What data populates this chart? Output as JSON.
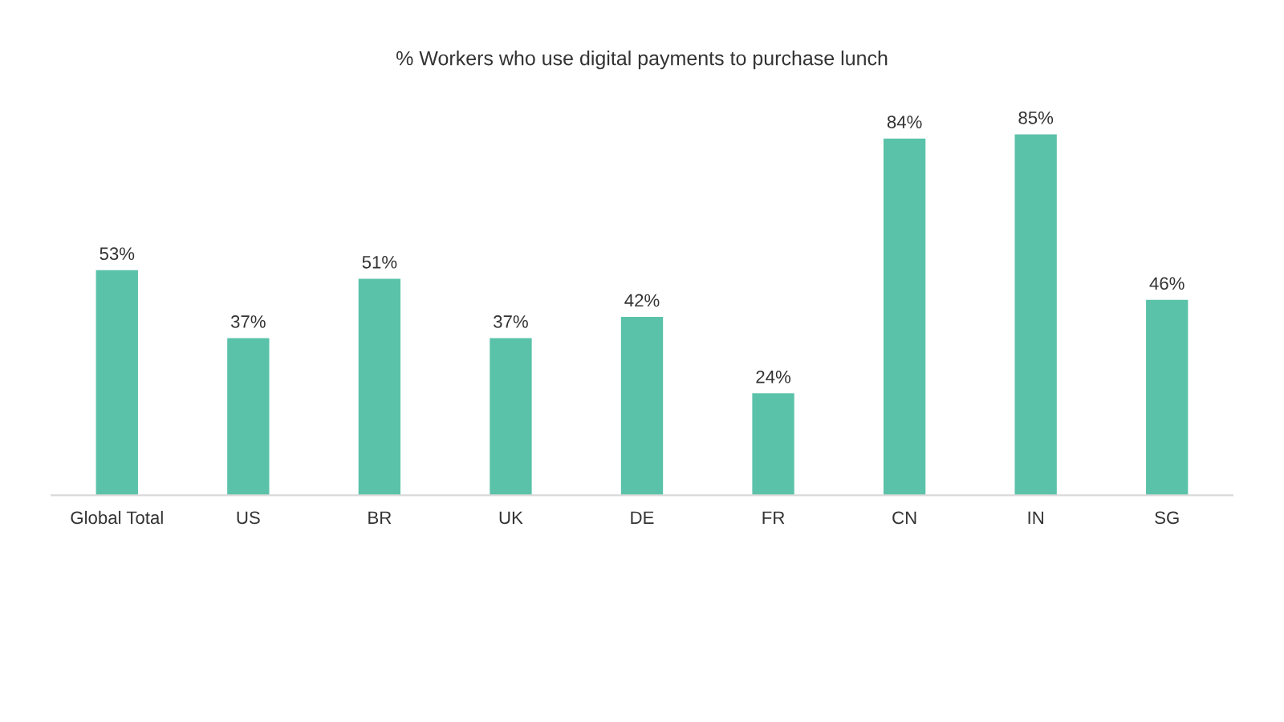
{
  "chart_data": {
    "type": "bar",
    "title": "% Workers who use digital payments to purchase lunch",
    "categories": [
      "Global Total",
      "US",
      "BR",
      "UK",
      "DE",
      "FR",
      "CN",
      "IN",
      "SG"
    ],
    "values": [
      53,
      37,
      51,
      37,
      42,
      24,
      84,
      85,
      46
    ],
    "value_labels": [
      "53%",
      "37%",
      "51%",
      "37%",
      "42%",
      "24%",
      "84%",
      "85%",
      "46%"
    ],
    "color": "#5bc2aa",
    "grid": false,
    "legend": false
  }
}
